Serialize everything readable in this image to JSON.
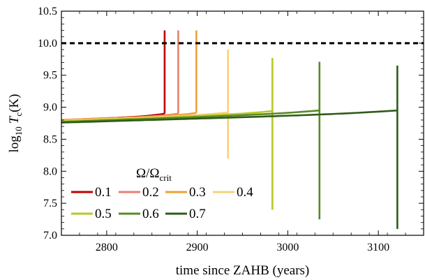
{
  "chart_data": {
    "type": "line",
    "xlabel": "time since ZAHB (years)",
    "ylabel_main": "log",
    "ylabel_sub": "10",
    "ylabel_var": "T",
    "ylabel_var_sub": "c",
    "ylabel_unit": "(K)",
    "legend_title_main": "Ω/Ω",
    "legend_title_sub": "crit",
    "xlim": [
      2750,
      3150
    ],
    "ylim": [
      7.0,
      10.5
    ],
    "xticks": [
      2800,
      2900,
      3000,
      3100
    ],
    "xtick_labels": [
      "2800",
      "2900",
      "3000",
      "3100"
    ],
    "yticks": [
      7.0,
      7.5,
      8.0,
      8.5,
      9.0,
      9.5,
      10.0,
      10.5
    ],
    "ytick_labels": [
      "7.0",
      "7.5",
      "8.0",
      "8.5",
      "9.0",
      "9.5",
      "10.0",
      "10.5"
    ],
    "reference_line": {
      "y": 10.0,
      "style": "dashed",
      "color": "#000000"
    },
    "legend_placement": "lower-left",
    "series": [
      {
        "name": "0.1",
        "color": "#c00000",
        "base_start": 8.8,
        "base_end": 8.9,
        "t_end": 2864,
        "spike_top": 10.2,
        "spike_bottom": null
      },
      {
        "name": "0.2",
        "color": "#e8806e",
        "base_start": 8.8,
        "base_end": 8.9,
        "t_end": 2879,
        "spike_top": 10.2,
        "spike_bottom": null
      },
      {
        "name": "0.3",
        "color": "#eea236",
        "base_start": 8.8,
        "base_end": 8.91,
        "t_end": 2899,
        "spike_top": 10.2,
        "spike_bottom": null
      },
      {
        "name": "0.4",
        "color": "#f8d07a",
        "base_start": 8.79,
        "base_end": 8.92,
        "t_end": 2934,
        "spike_top": 9.9,
        "spike_bottom": 8.2
      },
      {
        "name": "0.5",
        "color": "#b8c82a",
        "base_start": 8.78,
        "base_end": 8.94,
        "t_end": 2983,
        "spike_top": 9.77,
        "spike_bottom": 7.4
      },
      {
        "name": "0.6",
        "color": "#5a8a26",
        "base_start": 8.77,
        "base_end": 8.95,
        "t_end": 3035,
        "spike_top": 9.71,
        "spike_bottom": 7.25
      },
      {
        "name": "0.7",
        "color": "#2e5c18",
        "base_start": 8.76,
        "base_end": 8.95,
        "t_end": 3121,
        "spike_top": 9.65,
        "spike_bottom": 7.1
      }
    ]
  }
}
